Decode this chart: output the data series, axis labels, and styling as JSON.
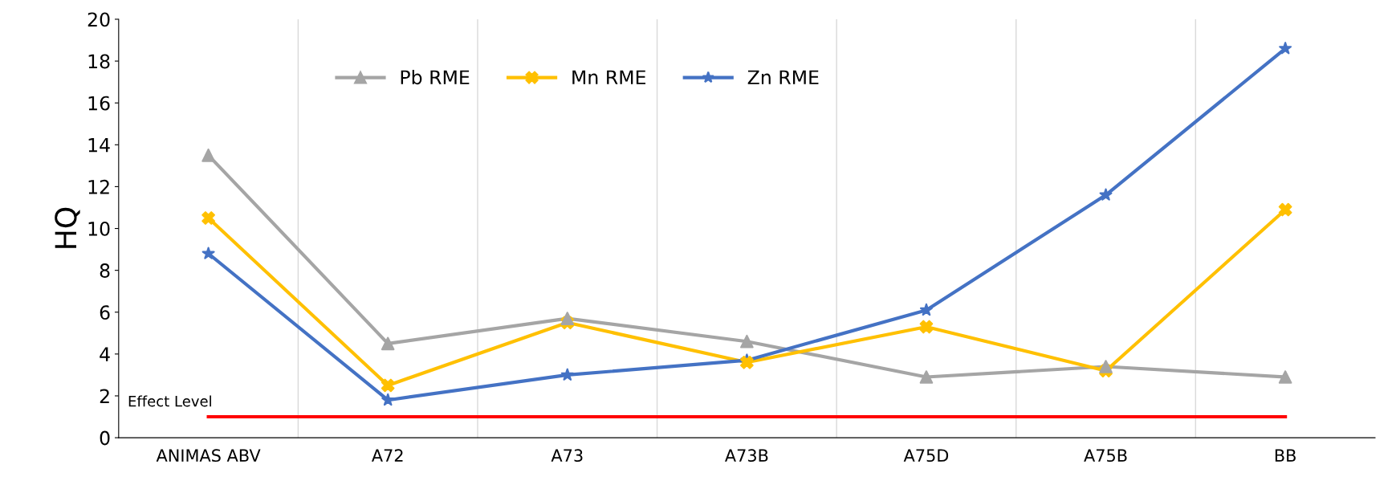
{
  "chart_data": {
    "type": "line",
    "ylabel": "HQ",
    "categories": [
      "ANIMAS ABV",
      "A72",
      "A73",
      "A73B",
      "A75D",
      "A75B",
      "BB"
    ],
    "series": [
      {
        "name": "Pb RME",
        "color": "#a5a5a5",
        "marker": "triangle",
        "values": [
          13.5,
          4.5,
          5.7,
          4.6,
          2.9,
          3.4,
          2.9
        ]
      },
      {
        "name": "Mn RME",
        "color": "#ffc000",
        "marker": "cross",
        "values": [
          10.5,
          2.5,
          5.5,
          3.6,
          5.3,
          3.2,
          10.9
        ]
      },
      {
        "name": "Zn RME",
        "color": "#4472c4",
        "marker": "star",
        "values": [
          8.8,
          1.8,
          3.0,
          3.7,
          6.1,
          11.6,
          18.6
        ]
      }
    ],
    "ref_lines": [
      {
        "axis": "y",
        "value": 1,
        "label": "Effect Level",
        "color": "#ff0000"
      }
    ],
    "ylim": [
      0,
      20
    ],
    "yticks": [
      0,
      2,
      4,
      6,
      8,
      10,
      12,
      14,
      16,
      18,
      20
    ],
    "grid": "x",
    "legend": "top left",
    "line_style": "solid"
  }
}
